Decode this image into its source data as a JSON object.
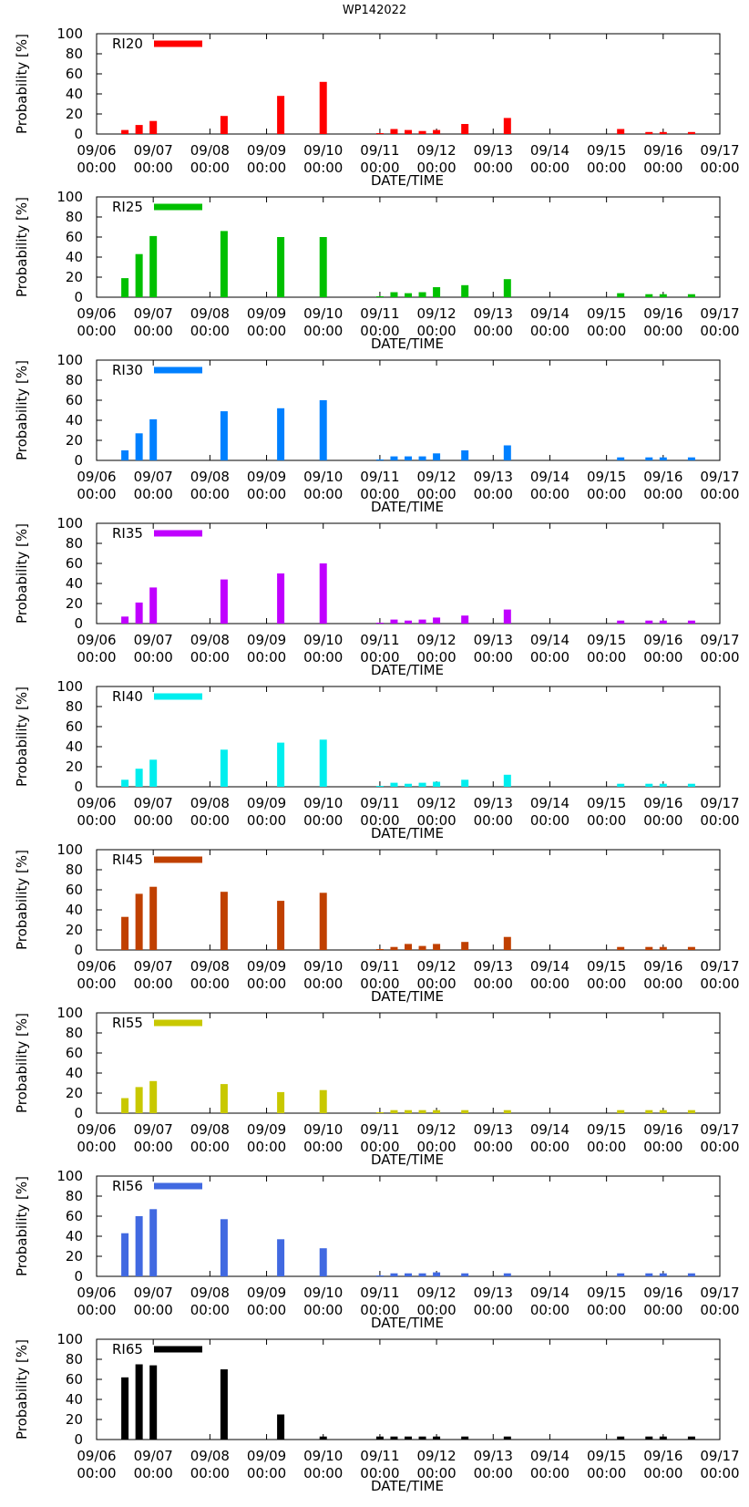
{
  "title": "WP142022",
  "chart_data": {
    "type": "bar",
    "title": "WP142022",
    "xlabel": "DATE/TIME",
    "ylabel": "Probability [%]",
    "ylim": [
      0,
      100
    ],
    "yticks": [
      0,
      20,
      40,
      60,
      80,
      100
    ],
    "xlim_hours": [
      0,
      264
    ],
    "xtick_labels": [
      {
        "date": "09/06",
        "time": "00:00"
      },
      {
        "date": "09/07",
        "time": "00:00"
      },
      {
        "date": "09/08",
        "time": "00:00"
      },
      {
        "date": "09/09",
        "time": "00:00"
      },
      {
        "date": "09/10",
        "time": "00:00"
      },
      {
        "date": "09/11",
        "time": "00:00"
      },
      {
        "date": "09/12",
        "time": "00:00"
      },
      {
        "date": "09/13",
        "time": "00:00"
      },
      {
        "date": "09/14",
        "time": "00:00"
      },
      {
        "date": "09/15",
        "time": "00:00"
      },
      {
        "date": "09/16",
        "time": "00:00"
      },
      {
        "date": "09/17",
        "time": "00:00"
      }
    ],
    "x_hours_since_0906": [
      12,
      18,
      24,
      54,
      78,
      96,
      120,
      126,
      132,
      138,
      144,
      156,
      174,
      222,
      234,
      240,
      252
    ],
    "series": [
      {
        "name": "RI20",
        "color": "#ff0000",
        "values": [
          4,
          9,
          13,
          18,
          38,
          52,
          0,
          5,
          4,
          3,
          4,
          10,
          16,
          5,
          2,
          2,
          2
        ]
      },
      {
        "name": "RI25",
        "color": "#00c000",
        "values": [
          19,
          43,
          61,
          66,
          60,
          60,
          0,
          5,
          4,
          5,
          10,
          12,
          18,
          4,
          3,
          3,
          3
        ]
      },
      {
        "name": "RI30",
        "color": "#0080ff",
        "values": [
          10,
          27,
          41,
          49,
          52,
          60,
          0,
          4,
          4,
          4,
          7,
          10,
          15,
          3,
          3,
          3,
          3
        ]
      },
      {
        "name": "RI35",
        "color": "#c000ff",
        "values": [
          7,
          21,
          36,
          44,
          50,
          60,
          0,
          4,
          3,
          4,
          6,
          8,
          14,
          3,
          3,
          3,
          3
        ]
      },
      {
        "name": "RI40",
        "color": "#00eeee",
        "values": [
          7,
          18,
          27,
          37,
          44,
          47,
          0,
          4,
          3,
          4,
          5,
          7,
          12,
          3,
          3,
          3,
          3
        ]
      },
      {
        "name": "RI45",
        "color": "#c04000",
        "values": [
          33,
          56,
          63,
          58,
          49,
          57,
          0,
          3,
          6,
          4,
          6,
          8,
          13,
          3,
          3,
          3,
          3
        ]
      },
      {
        "name": "RI55",
        "color": "#c8c800",
        "values": [
          15,
          26,
          32,
          29,
          21,
          23,
          0,
          3,
          3,
          3,
          3,
          3,
          3,
          3,
          3,
          3,
          3
        ]
      },
      {
        "name": "RI56",
        "color": "#4169e1",
        "values": [
          43,
          60,
          67,
          57,
          37,
          28,
          0,
          3,
          3,
          3,
          4,
          3,
          3,
          3,
          3,
          3,
          3
        ]
      },
      {
        "name": "RI65",
        "color": "#000000",
        "values": [
          62,
          75,
          74,
          70,
          25,
          3,
          3,
          3,
          3,
          3,
          3,
          3,
          3,
          3,
          3,
          3,
          3
        ]
      }
    ]
  }
}
